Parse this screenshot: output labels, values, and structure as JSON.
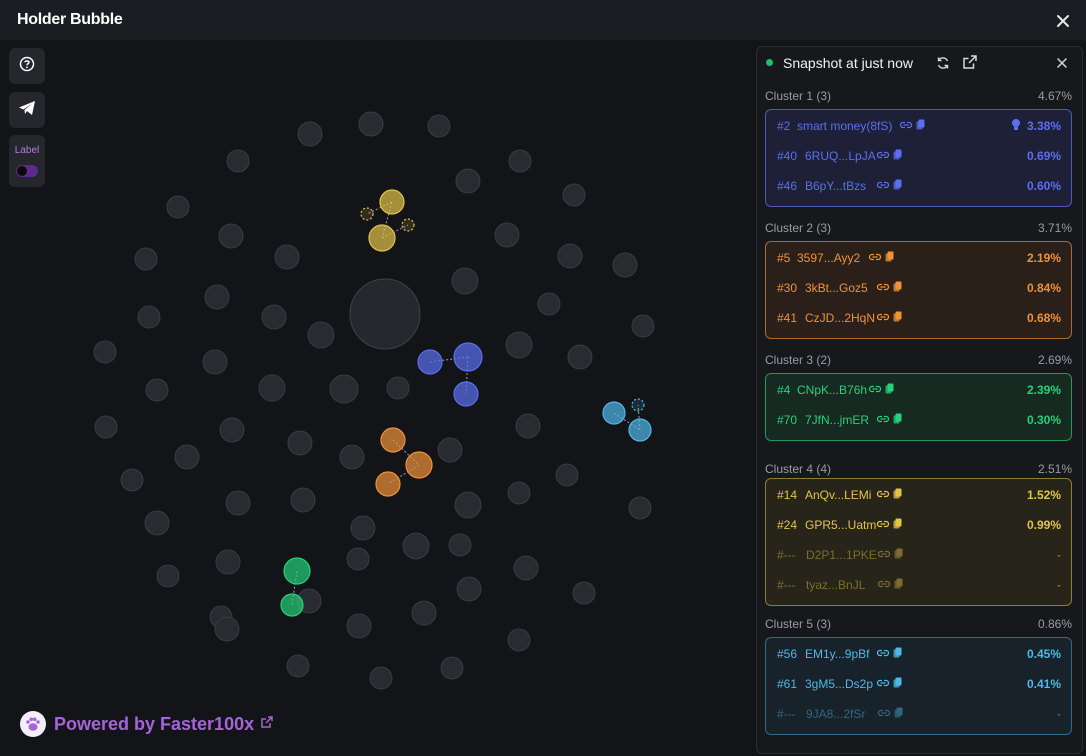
{
  "window": {
    "title": "Holder Bubble"
  },
  "toolbar": {
    "label_toggle": "Label"
  },
  "footer": {
    "powered_prefix": "Powered by ",
    "brand": "Faster100x"
  },
  "panel": {
    "snapshot_text": "Snapshot at just now",
    "clusters": [
      {
        "name": "Cluster 1 (3)",
        "percent": "4.67%",
        "color": "#5b6ff0",
        "bg": "#1d2036",
        "border": "#4d58b8",
        "rows": [
          {
            "rank": "#2",
            "address": "smart money(8fS)",
            "percent": "3.38%",
            "badge": "bulb-icon"
          },
          {
            "rank": "#40",
            "address": "6RUQ...LpJA",
            "percent": "0.69%"
          },
          {
            "rank": "#46",
            "address": "B6pY...tBzs",
            "percent": "0.60%"
          }
        ]
      },
      {
        "name": "Cluster 2 (3)",
        "percent": "3.71%",
        "color": "#f0913a",
        "bg": "#2a2019",
        "border": "#b0692c",
        "rows": [
          {
            "rank": "#5",
            "address": "3597...Ayy2",
            "percent": "2.19%"
          },
          {
            "rank": "#30",
            "address": "3kBt...Goz5",
            "percent": "0.84%"
          },
          {
            "rank": "#41",
            "address": "CzJD...2HqN",
            "percent": "0.68%"
          }
        ]
      },
      {
        "name": "Cluster 3 (2)",
        "percent": "2.69%",
        "color": "#27d07a",
        "bg": "#172a21",
        "border": "#1f9a5a",
        "rows": [
          {
            "rank": "#4",
            "address": "CNpK...B76h",
            "percent": "2.39%"
          },
          {
            "rank": "#70",
            "address": "7JfN...jmER",
            "percent": "0.30%"
          }
        ]
      },
      {
        "name": "Cluster 4 (4)",
        "percent": "2.51%",
        "color": "#e3c44a",
        "bg": "#27241a",
        "border": "#8f7d30",
        "rows": [
          {
            "rank": "#14",
            "address": "AnQv...LEMi",
            "percent": "1.52%"
          },
          {
            "rank": "#24",
            "address": "GPR5...Uatm",
            "percent": "0.99%"
          },
          {
            "rank": "#---",
            "address": "D2P1...1PKE",
            "percent": "-",
            "dim": true
          },
          {
            "rank": "#---",
            "address": "tyaz...BnJL",
            "percent": "-",
            "dim": true
          }
        ]
      },
      {
        "name": "Cluster 5 (3)",
        "percent": "0.86%",
        "color": "#4fb8e8",
        "bg": "#18222a",
        "border": "#2f6a88",
        "rows": [
          {
            "rank": "#56",
            "address": "EM1y...9pBf",
            "percent": "0.45%"
          },
          {
            "rank": "#61",
            "address": "3gM5...Ds2p",
            "percent": "0.41%"
          },
          {
            "rank": "#---",
            "address": "9JA8...2fSr",
            "percent": "-",
            "dim": true
          }
        ]
      }
    ]
  },
  "colors": {
    "grey_bubble": "#2a2b30",
    "grey_stroke": "#3a3b41"
  }
}
